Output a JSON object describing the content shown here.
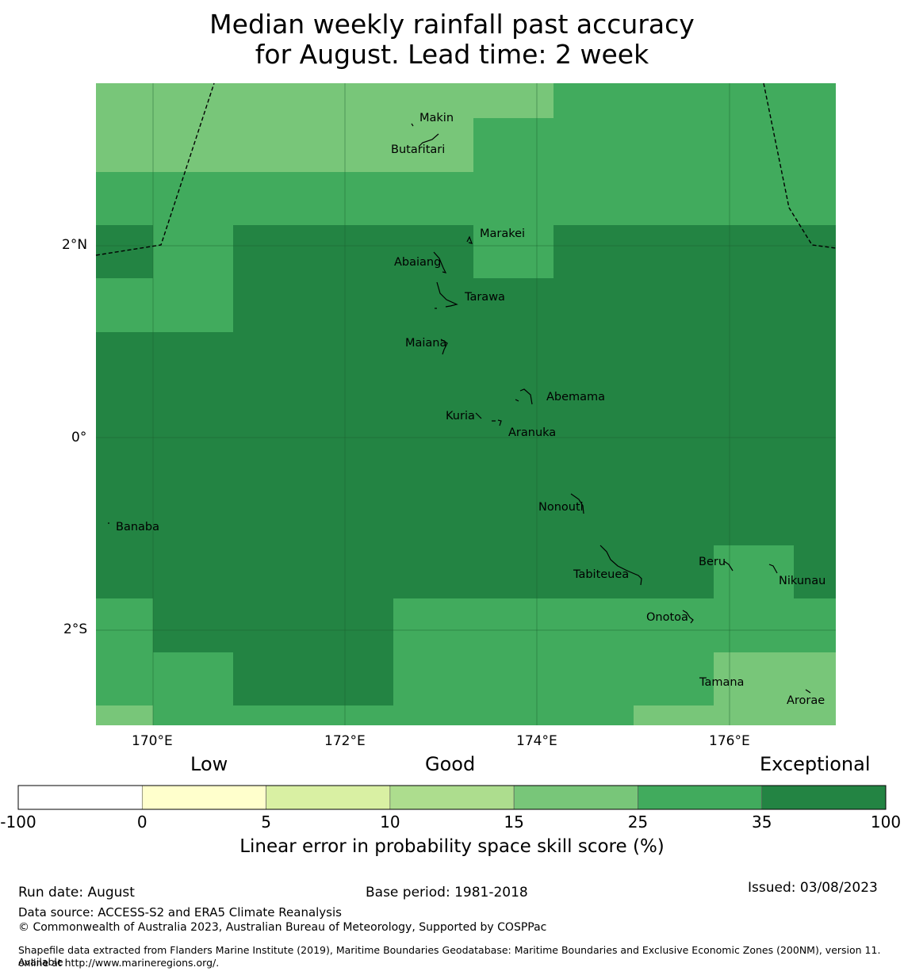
{
  "title": {
    "line1": "Median weekly rainfall past accuracy",
    "line2": "for August. Lead time: 2 week"
  },
  "axes": {
    "lat_labels": [
      "2°N",
      "0°",
      "2°S"
    ],
    "lon_labels": [
      "170°E",
      "172°E",
      "174°E",
      "176°E"
    ]
  },
  "islands": [
    "Makin",
    "Butaritari",
    "Marakei",
    "Abaiang",
    "Tarawa",
    "Maiana",
    "Abemama",
    "Kuria",
    "Aranuka",
    "Nonouti",
    "Banaba",
    "Tabiteuea",
    "Beru",
    "Nikunau",
    "Onotoa",
    "Tamana",
    "Arorae"
  ],
  "colorbar": {
    "category_labels": [
      "Low",
      "Good",
      "Exceptional"
    ],
    "ticks": [
      "-100",
      "0",
      "5",
      "10",
      "15",
      "25",
      "35",
      "100"
    ],
    "colors": [
      "#ffffff",
      "#ffffcc",
      "#d9f0a3",
      "#addd8e",
      "#78c679",
      "#41ab5d",
      "#238443"
    ],
    "title": "Linear error in probability space skill score (%)"
  },
  "footer": {
    "run_date": "Run date: August",
    "base_period": "Base period: 1981-2018",
    "issued": "Issued: 03/08/2023",
    "data_source": "Data source: ACCESS-S2 and ERA5 Climate Reanalysis",
    "copyright": "© Commonwealth of Australia 2023, Australian Bureau of Meteorology, Supported by COSPPac",
    "shapefile_line1": "Shapefile data extracted from Flanders Marine Institute (2019), Maritime Boundaries Geodatabase: Maritime Boundaries and Exclusive Economic Zones (200NM), version 11. Available",
    "shapefile_line2": "online at http://www.marineregions.org/."
  }
}
